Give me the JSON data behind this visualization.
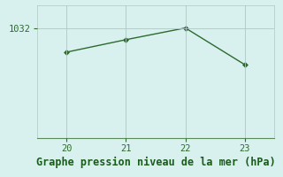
{
  "x": [
    20,
    21,
    22,
    23
  ],
  "y": [
    1030.5,
    1031.3,
    1032.05,
    1029.7
  ],
  "line_color": "#2d6a2d",
  "marker_color": "#2d6a2d",
  "background_color": "#d8f0ee",
  "plot_bg_color": "#d8f0ee",
  "grid_color": "#b0c8c4",
  "xlabel": "Graphe pression niveau de la mer (hPa)",
  "xlabel_color": "#1a5c1a",
  "xlabel_fontsize": 8.5,
  "xticks": [
    20,
    21,
    22,
    23
  ],
  "ytick_label": "1032",
  "ytick_value": 1032.0,
  "ylim": [
    1025.0,
    1033.5
  ],
  "xlim": [
    19.5,
    23.5
  ],
  "tick_color": "#2d6a2d",
  "tick_fontsize": 7.5
}
